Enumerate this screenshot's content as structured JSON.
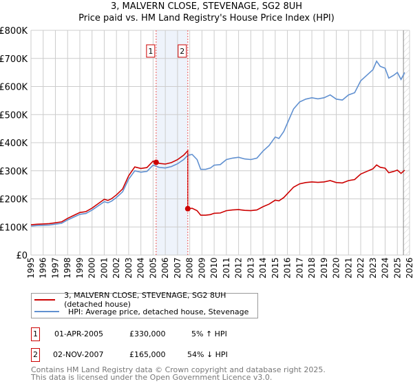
{
  "title": "3, MALVERN CLOSE, STEVENAGE, SG2 8UH",
  "subtitle": "Price paid vs. HM Land Registry's House Price Index (HPI)",
  "colors": {
    "property": "#cc0000",
    "hpi": "#6090d0",
    "grid": "#cccccc",
    "shade": "#eef3fb"
  },
  "chart_data": {
    "type": "line",
    "title": "3, MALVERN CLOSE, STEVENAGE, SG2 8UH",
    "subtitle": "Price paid vs. HM Land Registry's House Price Index (HPI)",
    "xlim": [
      1995,
      2026
    ],
    "ylim": [
      0,
      800000
    ],
    "y_ticks": [
      0,
      100000,
      200000,
      300000,
      400000,
      500000,
      600000,
      700000,
      800000
    ],
    "y_tick_labels": [
      "£0",
      "£100K",
      "£200K",
      "£300K",
      "£400K",
      "£500K",
      "£600K",
      "£700K",
      "£800K"
    ],
    "x_ticks": [
      "1995",
      "1996",
      "1997",
      "1998",
      "1999",
      "2000",
      "2001",
      "2002",
      "2003",
      "2004",
      "2005",
      "2006",
      "2007",
      "2008",
      "2009",
      "2010",
      "2011",
      "2012",
      "2013",
      "2014",
      "2015",
      "2016",
      "2017",
      "2018",
      "2019",
      "2020",
      "2021",
      "2022",
      "2023",
      "2024",
      "2025",
      "2026"
    ],
    "grid": true,
    "shaded_range": [
      2005.25,
      2007.84
    ],
    "forecast_hatch_from": 2025.5,
    "series": [
      {
        "name": "HPI: Average price, detached house, Stevenage",
        "x": [
          1995,
          1995.5,
          1996,
          1996.5,
          1997,
          1997.5,
          1998,
          1998.5,
          1999,
          1999.5,
          2000,
          2000.5,
          2001,
          2001.3,
          2001.6,
          2002,
          2002.5,
          2003,
          2003.5,
          2004,
          2004.5,
          2005,
          2005.5,
          2006,
          2006.5,
          2007,
          2007.5,
          2007.84,
          2008.2,
          2008.6,
          2008.9,
          2009.3,
          2009.7,
          2010,
          2010.5,
          2011,
          2011.5,
          2012,
          2012.5,
          2013,
          2013.5,
          2014,
          2014.5,
          2015,
          2015.3,
          2015.7,
          2016,
          2016.5,
          2017,
          2017.5,
          2018,
          2018.5,
          2019,
          2019.5,
          2020,
          2020.5,
          2021,
          2021.5,
          2022,
          2022.5,
          2023,
          2023.3,
          2023.6,
          2024,
          2024.3,
          2024.7,
          2025,
          2025.3,
          2025.6
        ],
        "y": [
          103000,
          105000,
          106000,
          107000,
          110000,
          113000,
          125000,
          135000,
          145000,
          148000,
          160000,
          175000,
          190000,
          186000,
          192000,
          205000,
          225000,
          270000,
          300000,
          295000,
          298000,
          320000,
          312000,
          310000,
          315000,
          325000,
          340000,
          355000,
          358000,
          340000,
          305000,
          305000,
          310000,
          320000,
          322000,
          340000,
          345000,
          348000,
          342000,
          340000,
          345000,
          370000,
          390000,
          420000,
          415000,
          440000,
          470000,
          520000,
          545000,
          555000,
          560000,
          556000,
          560000,
          570000,
          555000,
          552000,
          570000,
          578000,
          620000,
          640000,
          660000,
          690000,
          672000,
          665000,
          630000,
          640000,
          650000,
          625000,
          650000
        ]
      },
      {
        "name": "3, MALVERN CLOSE, STEVENAGE, SG2 8UH (detached house)",
        "scale_before_2007_84": 1.045,
        "scale_after_2007_84": 0.465
      }
    ],
    "sales": [
      {
        "label": "1",
        "date": "01-APR-2005",
        "x": 2005.25,
        "price": 330000
      },
      {
        "label": "2",
        "date": "02-NOV-2007",
        "x": 2007.84,
        "price": 165000
      }
    ]
  },
  "legend": {
    "property": "3, MALVERN CLOSE, STEVENAGE, SG2 8UH (detached house)",
    "hpi": "HPI: Average price, detached house, Stevenage"
  },
  "transactions": [
    {
      "num": "1",
      "date": "01-APR-2005",
      "price": "£330,000",
      "hpi": "5% ↑ HPI"
    },
    {
      "num": "2",
      "date": "02-NOV-2007",
      "price": "£165,000",
      "hpi": "54% ↓ HPI"
    }
  ],
  "footer": {
    "line1": "Contains HM Land Registry data © Crown copyright and database right 2025.",
    "line2": "This data is licensed under the Open Government Licence v3.0."
  }
}
